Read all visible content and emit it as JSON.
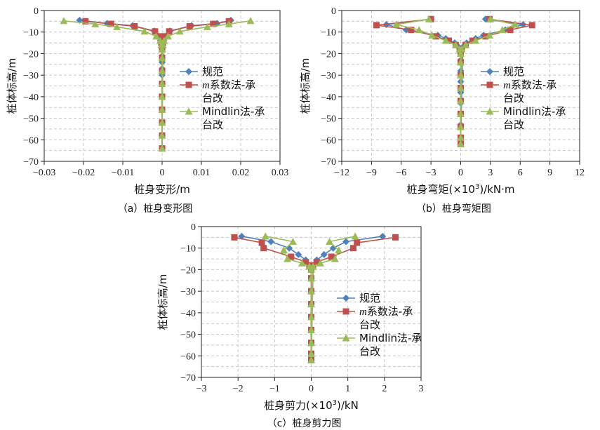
{
  "chart_data": [
    {
      "type": "line",
      "caption": "（a）桩身变形图",
      "xlabel": "桩身变形/m",
      "ylabel": "桩体标高/m",
      "xlim": [
        -0.03,
        0.03
      ],
      "ylim": [
        -70,
        0
      ],
      "xticks": [
        "−0.03",
        "−0.02",
        "−0.01",
        "0",
        "0.01",
        "0.02",
        "0.03"
      ],
      "xtick_values": [
        -0.03,
        -0.02,
        -0.01,
        0,
        0.01,
        0.02,
        0.03
      ],
      "yticks": [
        "0",
        "−10",
        "−20",
        "−30",
        "−40",
        "−50",
        "−60",
        "−70"
      ],
      "ytick_values": [
        0,
        -10,
        -20,
        -30,
        -40,
        -50,
        -60,
        -70
      ],
      "grid": true,
      "legend_position": "center",
      "series": [
        {
          "name": "规范",
          "color": "#4f81bd",
          "marker": "diamond",
          "x": [
            -0.021,
            -0.014,
            -0.0075,
            -0.002,
            -0.0008,
            -0.0004,
            -0.0002,
            0,
            0,
            0,
            0,
            0,
            0,
            0,
            0,
            0,
            0,
            0,
            0,
            0,
            0.0002,
            0.0004,
            0.0008,
            0.002,
            0.0075,
            0.014,
            0.0175
          ],
          "y": [
            -4.5,
            -6,
            -7,
            -9.5,
            -12,
            -14,
            -16,
            -18,
            -21,
            -24,
            -27,
            -30,
            -34,
            -40,
            -46,
            -52,
            -58,
            -64,
            -58,
            -24,
            -16,
            -14,
            -12,
            -9.5,
            -7,
            -6,
            -4.5
          ]
        },
        {
          "name": "m系数法-承台改",
          "name_parts": [
            "m",
            "系数法-承",
            "台改"
          ],
          "color": "#c0504d",
          "marker": "square",
          "x": [
            -0.0195,
            -0.013,
            -0.007,
            -0.0018,
            -0.0007,
            -0.0003,
            -0.0001,
            0,
            0,
            0,
            0,
            0,
            0,
            0,
            0,
            0,
            0.0001,
            0.0003,
            0.0007,
            0.0018,
            0.007,
            0.013,
            0.017
          ],
          "y": [
            -5,
            -6.2,
            -7.3,
            -9.7,
            -12,
            -14,
            -16,
            -18,
            -22,
            -28,
            -34,
            -40,
            -46,
            -52,
            -58,
            -64,
            -16,
            -14,
            -12,
            -9.7,
            -7.3,
            -6.2,
            -5
          ]
        },
        {
          "name": "Mindlin法-承台改",
          "name_parts": [
            "Mindlin法-承",
            "台改"
          ],
          "color": "#9bbb59",
          "marker": "triangle",
          "x": [
            -0.025,
            -0.017,
            -0.0115,
            -0.0045,
            -0.0015,
            -0.0005,
            -0.0002,
            0,
            0,
            0,
            0,
            0,
            0,
            0,
            0,
            0,
            0.0002,
            0.0005,
            0.0015,
            0.0045,
            0.0115,
            0.017,
            0.0225
          ],
          "y": [
            -4.8,
            -6.3,
            -7.6,
            -9.7,
            -12,
            -14,
            -16,
            -18,
            -22,
            -28,
            -34,
            -40,
            -46,
            -52,
            -58,
            -64,
            -16,
            -14,
            -12,
            -9.7,
            -7.6,
            -6.3,
            -4.8
          ]
        }
      ]
    },
    {
      "type": "line",
      "caption": "（b）桩身弯矩图",
      "xlabel": "桩身弯矩(×10³)/kN·m",
      "xlabel_parts": [
        "桩身弯矩(×10",
        "3",
        ")/kN·m"
      ],
      "ylabel": "桩体标高/m",
      "xlim": [
        -12,
        12
      ],
      "ylim": [
        -70,
        0
      ],
      "xticks": [
        "−12",
        "−9",
        "−6",
        "−3",
        "0",
        "3",
        "6",
        "9",
        "12"
      ],
      "xtick_values": [
        -12,
        -9,
        -6,
        -3,
        0,
        3,
        6,
        9,
        12
      ],
      "yticks": [
        "0",
        "−10",
        "−20",
        "−30",
        "−40",
        "−50",
        "−60",
        "−70"
      ],
      "ytick_values": [
        0,
        -10,
        -20,
        -30,
        -40,
        -50,
        -60,
        -70
      ],
      "grid": true,
      "legend_position": "center-right",
      "series": [
        {
          "name": "规范",
          "color": "#4f81bd",
          "marker": "diamond",
          "x": [
            -3,
            -7.5,
            -5.5,
            -2.3,
            -1.5,
            -0.6,
            -0.2,
            0,
            0,
            0,
            0,
            0,
            0,
            0,
            0,
            0,
            0.2,
            0.6,
            1.5,
            2.3,
            4.5,
            6.3,
            2.5
          ],
          "y": [
            -4,
            -6.5,
            -9,
            -11.5,
            -13,
            -15,
            -17,
            -19,
            -23,
            -28,
            -33,
            -38,
            -43,
            -48,
            -53,
            -60,
            -17,
            -15,
            -13,
            -11.5,
            -9,
            -6.5,
            -4
          ]
        },
        {
          "name": "m系数法-承台改",
          "name_parts": [
            "m",
            "系数法-承",
            "台改"
          ],
          "color": "#c0504d",
          "marker": "square",
          "x": [
            -3,
            -8.5,
            -5,
            -2.5,
            -1.2,
            -0.5,
            -0.1,
            0,
            0,
            0,
            0,
            0,
            0,
            0,
            0,
            0,
            0.1,
            0.5,
            1.2,
            2.5,
            5,
            7.2,
            2.9
          ],
          "y": [
            -4,
            -6.8,
            -9,
            -12,
            -14,
            -16,
            -18,
            -20,
            -24,
            -30,
            -36,
            -42,
            -48,
            -54,
            -59,
            -62,
            -18,
            -16,
            -14,
            -12,
            -9,
            -6.8,
            -4
          ]
        },
        {
          "name": "Mindlin法-承台改",
          "name_parts": [
            "Mindlin法-承",
            "台改"
          ],
          "color": "#9bbb59",
          "marker": "triangle",
          "x": [
            -3.2,
            -6.5,
            -4.2,
            -2.9,
            -1.5,
            -0.5,
            -0.1,
            0,
            0,
            0,
            0,
            0,
            0,
            0,
            0,
            0,
            0.1,
            0.5,
            1.5,
            2.9,
            4.2,
            5.5,
            3
          ],
          "y": [
            -4,
            -6.5,
            -9,
            -11.5,
            -14,
            -16,
            -18,
            -20,
            -24,
            -30,
            -36,
            -42,
            -48,
            -54,
            -59,
            -62,
            -18,
            -16,
            -14,
            -11.5,
            -9,
            -6.5,
            -4
          ]
        }
      ]
    },
    {
      "type": "line",
      "caption": "（c）桩身剪力图",
      "xlabel": "桩身剪力(×10³)/kN",
      "xlabel_parts": [
        "桩身剪力(×10",
        "3",
        ")/kN"
      ],
      "ylabel": "桩体标高/m",
      "xlim": [
        -3,
        3
      ],
      "ylim": [
        -70,
        0
      ],
      "xticks": [
        "−3",
        "−2",
        "−1",
        "0",
        "1",
        "2",
        "3"
      ],
      "xtick_values": [
        -3,
        -2,
        -1,
        0,
        1,
        2,
        3
      ],
      "yticks": [
        "0",
        "−10",
        "−20",
        "−30",
        "−40",
        "−50",
        "−60",
        "−70"
      ],
      "ytick_values": [
        0,
        -10,
        -20,
        -30,
        -40,
        -50,
        -60,
        -70
      ],
      "grid": true,
      "legend_position": "center-right",
      "series": [
        {
          "name": "规范",
          "color": "#4f81bd",
          "marker": "diamond",
          "x": [
            -1.9,
            -1.1,
            -0.6,
            -0.35,
            -0.15,
            -0.05,
            0,
            0,
            0,
            0,
            0,
            0,
            0,
            0,
            0,
            0.05,
            0.15,
            0.35,
            0.6,
            0.95,
            1.95
          ],
          "y": [
            -4.5,
            -7,
            -10,
            -13,
            -15.5,
            -18,
            -20,
            -24,
            -30,
            -36,
            -42,
            -48,
            -54,
            -59,
            -62,
            -18,
            -15.5,
            -13,
            -10,
            -7,
            -4.5
          ]
        },
        {
          "name": "m系数法-承台改",
          "name_parts": [
            "m",
            "系数法-承",
            "台改"
          ],
          "color": "#c0504d",
          "marker": "square",
          "x": [
            -2.1,
            -1.35,
            -1.3,
            -0.55,
            -0.15,
            -0.05,
            0,
            0,
            0,
            0,
            0,
            0,
            0,
            0,
            0,
            0.05,
            0.15,
            0.55,
            1.15,
            1.25,
            2.3
          ],
          "y": [
            -5,
            -7.5,
            -10,
            -14,
            -16.5,
            -18,
            -20,
            -24,
            -30,
            -36,
            -42,
            -48,
            -54,
            -59,
            -62,
            -18,
            -16.5,
            -14,
            -10,
            -7.5,
            -5
          ]
        },
        {
          "name": "Mindlin法-承台改",
          "name_parts": [
            "Mindlin法-承",
            "台改"
          ],
          "color": "#9bbb59",
          "marker": "triangle",
          "x": [
            -1.25,
            -0.5,
            -0.75,
            -0.65,
            -0.25,
            -0.05,
            0,
            0,
            0,
            0,
            0,
            0,
            0,
            0,
            0,
            0.05,
            0.25,
            0.65,
            0.75,
            0.5,
            1.2
          ],
          "y": [
            -4.5,
            -7,
            -11,
            -15,
            -17,
            -18.5,
            -20,
            -24,
            -30,
            -36,
            -42,
            -48,
            -54,
            -59,
            -62,
            -18.5,
            -17,
            -15,
            -11,
            -7,
            -4.5
          ]
        }
      ]
    }
  ]
}
